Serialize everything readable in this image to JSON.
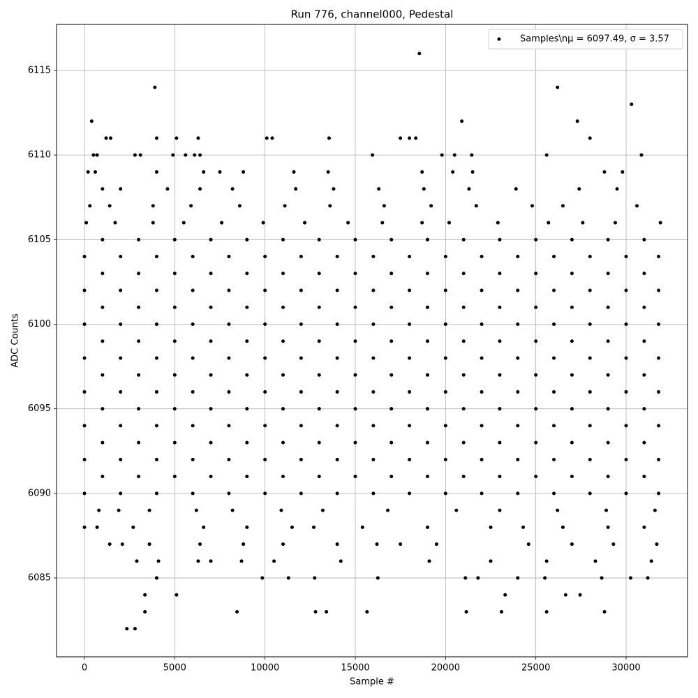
{
  "chart_data": {
    "type": "scatter",
    "title": "Run 776, channel000, Pedestal",
    "x_label": "Sample #",
    "y_label": "ADC Counts",
    "xlim": [
      -1546,
      33402
    ],
    "ylim": [
      6080.34,
      6117.72
    ],
    "xticks": [
      0,
      5000,
      10000,
      15000,
      20000,
      25000,
      30000
    ],
    "yticks": [
      6085,
      6090,
      6095,
      6100,
      6105,
      6110,
      6115
    ],
    "grid": true,
    "legend": "upper right",
    "series": [
      {
        "name": "Samples\\nμ = 6097.49, σ = 3.57",
        "color": "#000000",
        "x": [
          2350,
          2800,
          3350,
          3350,
          3900,
          18550,
          26200,
          30300,
          27300,
          20900,
          400,
          8450,
          12800,
          13400,
          15650,
          21150,
          23100,
          25600,
          28800,
          5100,
          23300,
          26650,
          27450,
          4000,
          9850,
          11300,
          12750,
          16250,
          21100,
          21800,
          24000,
          25500,
          28650,
          30250,
          31200,
          2900,
          4100,
          6300,
          7000,
          8700,
          10500,
          14200,
          19100,
          22500,
          25600,
          28300,
          31400,
          1400,
          2100,
          3600,
          6400,
          8800,
          11000,
          14000,
          16200,
          17500,
          19500,
          24600,
          27000,
          29300,
          31700,
          0,
          700,
          2700,
          6600,
          9000,
          11500,
          12700,
          15400,
          19000,
          22500,
          24300,
          26500,
          29000,
          31000,
          800,
          1900,
          3600,
          6200,
          8200,
          10900,
          13200,
          16800,
          20600,
          23000,
          26200,
          28900,
          31600,
          0,
          2000,
          4000,
          6000,
          8000,
          10000,
          12000,
          14000,
          16000,
          18000,
          20000,
          22000,
          24000,
          26000,
          28000,
          30000,
          31800,
          1000,
          3000,
          5000,
          7000,
          9000,
          11000,
          13000,
          15000,
          17000,
          19000,
          21000,
          23000,
          25000,
          27000,
          29000,
          31000,
          0,
          2000,
          4000,
          6000,
          8000,
          10000,
          12000,
          14000,
          16000,
          18000,
          20000,
          22000,
          24000,
          26000,
          28000,
          30000,
          31800,
          1000,
          3000,
          5000,
          7000,
          9000,
          11000,
          13000,
          15000,
          17000,
          19000,
          21000,
          23000,
          25000,
          27000,
          29000,
          31000,
          0,
          2000,
          4000,
          6000,
          8000,
          10000,
          12000,
          14000,
          16000,
          18000,
          20000,
          22000,
          24000,
          26000,
          28000,
          30000,
          31800,
          1000,
          3000,
          5000,
          7000,
          9000,
          11000,
          13000,
          15000,
          17000,
          19000,
          21000,
          23000,
          25000,
          27000,
          29000,
          31000,
          0,
          2000,
          4000,
          6000,
          8000,
          10000,
          12000,
          14000,
          16000,
          18000,
          20000,
          22000,
          24000,
          26000,
          28000,
          30000,
          31800,
          1000,
          3000,
          5000,
          7000,
          9000,
          11000,
          13000,
          15000,
          17000,
          19000,
          21000,
          23000,
          25000,
          27000,
          29000,
          31000,
          0,
          2000,
          4000,
          6000,
          8000,
          10000,
          12000,
          14000,
          16000,
          18000,
          20000,
          22000,
          24000,
          26000,
          28000,
          30000,
          31800,
          1000,
          3000,
          5000,
          7000,
          9000,
          11000,
          13000,
          15000,
          17000,
          19000,
          21000,
          23000,
          25000,
          27000,
          29000,
          31000,
          0,
          2000,
          4000,
          6000,
          8000,
          10000,
          12000,
          14000,
          16000,
          18000,
          20000,
          22000,
          24000,
          26000,
          28000,
          30000,
          31800,
          1000,
          3000,
          5000,
          7000,
          9000,
          11000,
          13000,
          15000,
          17000,
          19000,
          21000,
          23000,
          25000,
          27000,
          29000,
          31000,
          0,
          2000,
          4000,
          6000,
          8000,
          10000,
          12000,
          14000,
          16000,
          18000,
          20000,
          22000,
          24000,
          26000,
          28000,
          30000,
          31800,
          1000,
          3000,
          5000,
          7000,
          9000,
          11000,
          13000,
          15000,
          17000,
          19000,
          21000,
          23000,
          25000,
          27000,
          29000,
          31000,
          0,
          2000,
          4000,
          6000,
          8000,
          10000,
          12000,
          14000,
          16000,
          18000,
          20000,
          22000,
          24000,
          26000,
          28000,
          30000,
          31800,
          1000,
          3000,
          5000,
          7000,
          9000,
          11000,
          13000,
          15000,
          17000,
          19000,
          21000,
          23000,
          25000,
          27000,
          29000,
          31000,
          100,
          1700,
          3800,
          5500,
          7600,
          9900,
          12200,
          14600,
          16500,
          18700,
          20200,
          22900,
          25700,
          27600,
          29400,
          31900,
          300,
          1400,
          3800,
          5900,
          8600,
          11100,
          13600,
          16600,
          19200,
          21700,
          24800,
          26500,
          30600,
          1000,
          2000,
          4600,
          6400,
          8200,
          11700,
          13800,
          16300,
          18800,
          21300,
          23900,
          27400,
          29500,
          200,
          600,
          4000,
          6600,
          7500,
          8800,
          11600,
          13500,
          18700,
          20400,
          21500,
          28800,
          29800,
          500,
          700,
          2800,
          3100,
          4900,
          5600,
          6100,
          6400,
          15950,
          19800,
          20500,
          21450,
          25600,
          30850,
          1200,
          1450,
          4000,
          5100,
          6300,
          10100,
          10400,
          13550,
          17500,
          18000,
          18350,
          28000
        ],
        "values": [
          6082,
          6082,
          6083,
          6084,
          6114,
          6116,
          6114,
          6113,
          6112,
          6112,
          6112,
          6083,
          6083,
          6083,
          6083,
          6083,
          6083,
          6083,
          6083,
          6084,
          6084,
          6084,
          6084,
          6085,
          6085,
          6085,
          6085,
          6085,
          6085,
          6085,
          6085,
          6085,
          6085,
          6085,
          6085,
          6086,
          6086,
          6086,
          6086,
          6086,
          6086,
          6086,
          6086,
          6086,
          6086,
          6086,
          6086,
          6087,
          6087,
          6087,
          6087,
          6087,
          6087,
          6087,
          6087,
          6087,
          6087,
          6087,
          6087,
          6087,
          6087,
          6088,
          6088,
          6088,
          6088,
          6088,
          6088,
          6088,
          6088,
          6088,
          6088,
          6088,
          6088,
          6088,
          6088,
          6089,
          6089,
          6089,
          6089,
          6089,
          6089,
          6089,
          6089,
          6089,
          6089,
          6089,
          6089,
          6089,
          6090,
          6090,
          6090,
          6090,
          6090,
          6090,
          6090,
          6090,
          6090,
          6090,
          6090,
          6090,
          6090,
          6090,
          6090,
          6090,
          6090,
          6091,
          6091,
          6091,
          6091,
          6091,
          6091,
          6091,
          6091,
          6091,
          6091,
          6091,
          6091,
          6091,
          6091,
          6091,
          6091,
          6092,
          6092,
          6092,
          6092,
          6092,
          6092,
          6092,
          6092,
          6092,
          6092,
          6092,
          6092,
          6092,
          6092,
          6092,
          6092,
          6092,
          6093,
          6093,
          6093,
          6093,
          6093,
          6093,
          6093,
          6093,
          6093,
          6093,
          6093,
          6093,
          6093,
          6093,
          6093,
          6093,
          6094,
          6094,
          6094,
          6094,
          6094,
          6094,
          6094,
          6094,
          6094,
          6094,
          6094,
          6094,
          6094,
          6094,
          6094,
          6094,
          6094,
          6095,
          6095,
          6095,
          6095,
          6095,
          6095,
          6095,
          6095,
          6095,
          6095,
          6095,
          6095,
          6095,
          6095,
          6095,
          6095,
          6096,
          6096,
          6096,
          6096,
          6096,
          6096,
          6096,
          6096,
          6096,
          6096,
          6096,
          6096,
          6096,
          6096,
          6096,
          6096,
          6096,
          6097,
          6097,
          6097,
          6097,
          6097,
          6097,
          6097,
          6097,
          6097,
          6097,
          6097,
          6097,
          6097,
          6097,
          6097,
          6097,
          6098,
          6098,
          6098,
          6098,
          6098,
          6098,
          6098,
          6098,
          6098,
          6098,
          6098,
          6098,
          6098,
          6098,
          6098,
          6098,
          6098,
          6099,
          6099,
          6099,
          6099,
          6099,
          6099,
          6099,
          6099,
          6099,
          6099,
          6099,
          6099,
          6099,
          6099,
          6099,
          6099,
          6100,
          6100,
          6100,
          6100,
          6100,
          6100,
          6100,
          6100,
          6100,
          6100,
          6100,
          6100,
          6100,
          6100,
          6100,
          6100,
          6100,
          6101,
          6101,
          6101,
          6101,
          6101,
          6101,
          6101,
          6101,
          6101,
          6101,
          6101,
          6101,
          6101,
          6101,
          6101,
          6101,
          6102,
          6102,
          6102,
          6102,
          6102,
          6102,
          6102,
          6102,
          6102,
          6102,
          6102,
          6102,
          6102,
          6102,
          6102,
          6102,
          6102,
          6103,
          6103,
          6103,
          6103,
          6103,
          6103,
          6103,
          6103,
          6103,
          6103,
          6103,
          6103,
          6103,
          6103,
          6103,
          6103,
          6104,
          6104,
          6104,
          6104,
          6104,
          6104,
          6104,
          6104,
          6104,
          6104,
          6104,
          6104,
          6104,
          6104,
          6104,
          6104,
          6104,
          6105,
          6105,
          6105,
          6105,
          6105,
          6105,
          6105,
          6105,
          6105,
          6105,
          6105,
          6105,
          6105,
          6105,
          6105,
          6105,
          6106,
          6106,
          6106,
          6106,
          6106,
          6106,
          6106,
          6106,
          6106,
          6106,
          6106,
          6106,
          6106,
          6106,
          6106,
          6106,
          6107,
          6107,
          6107,
          6107,
          6107,
          6107,
          6107,
          6107,
          6107,
          6107,
          6107,
          6107,
          6107,
          6108,
          6108,
          6108,
          6108,
          6108,
          6108,
          6108,
          6108,
          6108,
          6108,
          6108,
          6108,
          6108,
          6109,
          6109,
          6109,
          6109,
          6109,
          6109,
          6109,
          6109,
          6109,
          6109,
          6109,
          6109,
          6109,
          6110,
          6110,
          6110,
          6110,
          6110,
          6110,
          6110,
          6110,
          6110,
          6110,
          6110,
          6110,
          6110,
          6110,
          6111,
          6111,
          6111,
          6111,
          6111,
          6111,
          6111,
          6111,
          6111,
          6111,
          6111,
          6111
        ]
      }
    ]
  }
}
